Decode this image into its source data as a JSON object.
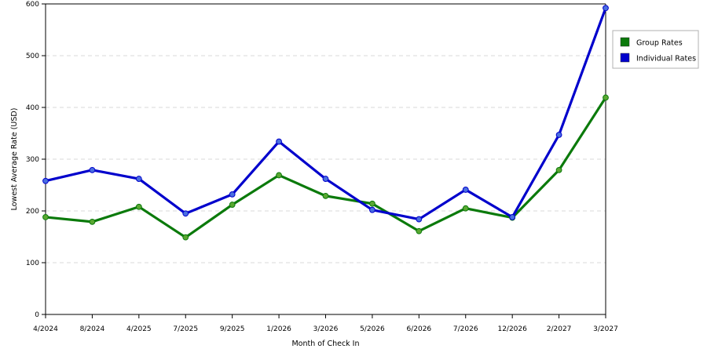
{
  "chart_data": {
    "type": "line",
    "xlabel": "Month of Check In",
    "ylabel": "Lowest Average Rate (USD)",
    "ylim": [
      0,
      600
    ],
    "yticks": [
      0,
      100,
      200,
      300,
      400,
      500,
      600
    ],
    "grid": true,
    "legend_position": "right",
    "categories": [
      "4/2024",
      "8/2024",
      "4/2025",
      "7/2025",
      "9/2025",
      "1/2026",
      "3/2026",
      "5/2026",
      "6/2026",
      "7/2026",
      "12/2026",
      "2/2027",
      "3/2027"
    ],
    "series": [
      {
        "name": "Group Rates",
        "color": "#0b7a0b",
        "marker_color": "#5aa832",
        "values": [
          188,
          179,
          208,
          149,
          212,
          269,
          229,
          214,
          161,
          205,
          187,
          279,
          419
        ]
      },
      {
        "name": "Individual Rates",
        "color": "#0000cc",
        "marker_color": "#4a6fe0",
        "values": [
          258,
          279,
          262,
          195,
          232,
          334,
          262,
          202,
          184,
          241,
          188,
          347,
          592
        ]
      }
    ]
  }
}
